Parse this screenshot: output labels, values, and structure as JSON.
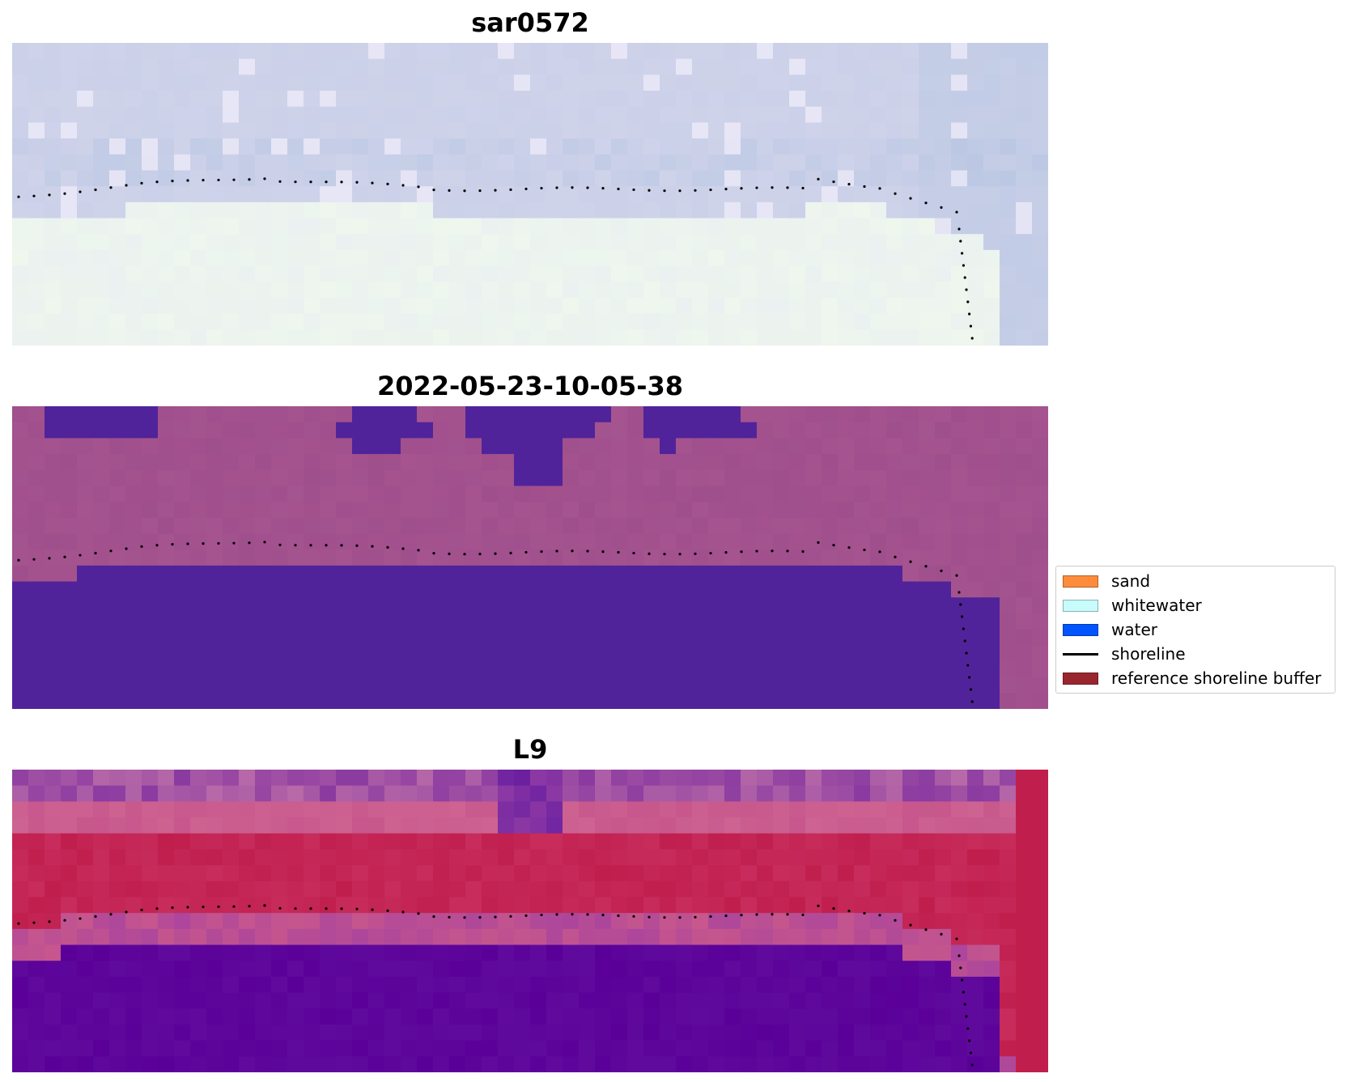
{
  "panels": [
    {
      "title": "sar0572",
      "style": "sar"
    },
    {
      "title": "2022-05-23-10-05-38",
      "style": "classified"
    },
    {
      "title": "L9",
      "style": "index"
    }
  ],
  "legend": {
    "items": [
      {
        "label": "sand",
        "kind": "patch",
        "color": "#ff8c3c"
      },
      {
        "label": "whitewater",
        "kind": "patch",
        "color": "#c8fbfb"
      },
      {
        "label": "water",
        "kind": "patch",
        "color": "#0055ff"
      },
      {
        "label": "shoreline",
        "kind": "line",
        "color": "#000000"
      },
      {
        "label": "reference shoreline buffer",
        "kind": "patch",
        "color": "#99262e"
      }
    ]
  },
  "colors": {
    "sar_sky": "#cfd3ea",
    "sar_land": "#eef6ee",
    "class_background": "#a5548f",
    "class_water": "#51239a",
    "index_red": "#c01f4e",
    "index_pink": "#c7578c",
    "index_purple": "#5a0099",
    "shoreline": "#000000"
  }
}
